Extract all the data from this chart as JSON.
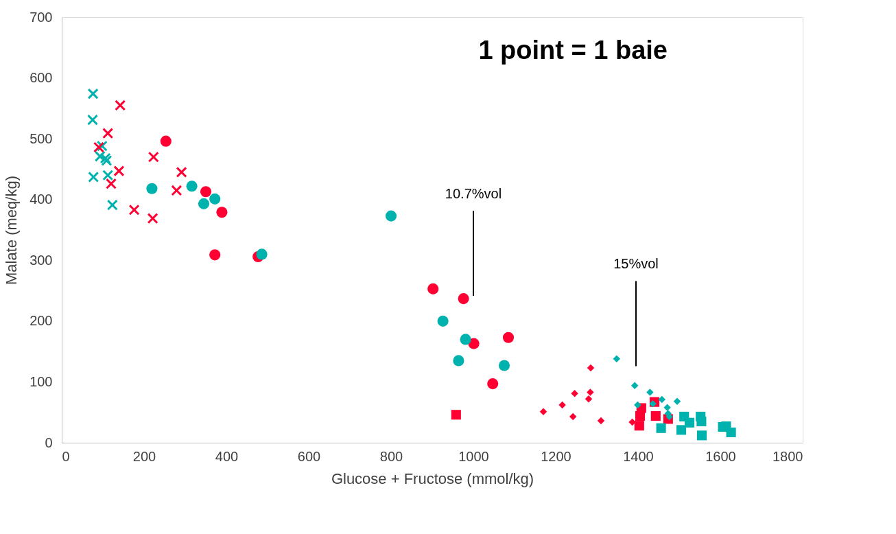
{
  "chart_data": {
    "type": "scatter",
    "xlabel": "Glucose + Fructose (mmol/kg)",
    "ylabel": "Malate (meq/kg)",
    "xlim": [
      0,
      1800
    ],
    "xticks": [
      0,
      200,
      400,
      600,
      800,
      1000,
      1200,
      1400,
      1600,
      1800
    ],
    "ylim": [
      0,
      700
    ],
    "yticks": [
      0,
      100,
      200,
      300,
      400,
      500,
      600,
      700
    ],
    "grid": false,
    "annotations": [
      "1 point = 1 baie"
    ],
    "ref_lines": [
      {
        "axis": "x",
        "value": 1000,
        "label": "10.7%vol"
      },
      {
        "axis": "x",
        "value": 1395,
        "label": "15%vol"
      }
    ],
    "series": [
      {
        "color": "#00b2ae",
        "marker": "cross",
        "x": [
          76,
          75,
          98,
          93,
          106,
          109,
          112,
          77,
          123
        ],
        "values": [
          574,
          531,
          488,
          471,
          468,
          464,
          440,
          437,
          391
        ]
      },
      {
        "color": "#ff0033",
        "marker": "cross",
        "x": [
          142,
          112,
          90,
          139,
          120,
          223,
          291,
          279,
          176,
          221
        ],
        "values": [
          555,
          509,
          486,
          447,
          426,
          470,
          445,
          415,
          383,
          369
        ]
      },
      {
        "color": "#ff0033",
        "marker": "circle",
        "x": [
          253,
          350,
          389,
          372,
          477,
          902,
          976,
          1001,
          1085,
          1047
        ],
        "values": [
          496,
          413,
          379,
          309,
          306,
          253,
          237,
          163,
          173,
          97
        ]
      },
      {
        "color": "#00b2ae",
        "marker": "circle",
        "x": [
          219,
          316,
          372,
          345,
          486,
          800,
          926,
          981,
          964,
          1075
        ],
        "values": [
          418,
          422,
          401,
          393,
          310,
          373,
          200,
          170,
          135,
          127
        ]
      },
      {
        "color": "#ff0033",
        "marker": "square",
        "x": [
          958,
          1408,
          1405,
          1403,
          1440,
          1443,
          1473
        ],
        "values": [
          46,
          57,
          44,
          28,
          67,
          44,
          39
        ]
      },
      {
        "color": "#00b2ae",
        "marker": "square",
        "x": [
          1456,
          1512,
          1525,
          1505,
          1552,
          1554,
          1555,
          1606,
          1614,
          1626
        ],
        "values": [
          24,
          43,
          33,
          21,
          43,
          35,
          12,
          26,
          27,
          17
        ]
      },
      {
        "color": "#ff0033",
        "marker": "diamond",
        "x": [
          1285,
          1246,
          1284,
          1280,
          1216,
          1170,
          1242,
          1310,
          1386
        ],
        "values": [
          123,
          81,
          83,
          72,
          62,
          51,
          43,
          36,
          34
        ]
      },
      {
        "color": "#00b2ae",
        "marker": "diamond",
        "x": [
          1348,
          1392,
          1429,
          1458,
          1495,
          1399,
          1436,
          1471,
          1473,
          1476
        ],
        "values": [
          138,
          94,
          83,
          71,
          68,
          62,
          64,
          58,
          48,
          43
        ]
      }
    ]
  }
}
